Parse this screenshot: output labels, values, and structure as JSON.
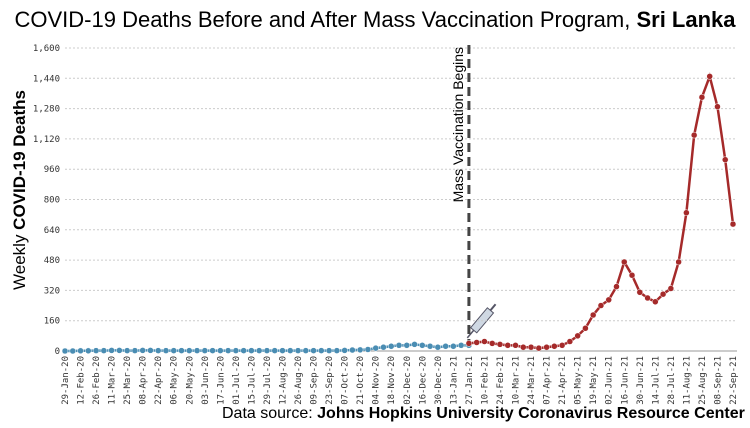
{
  "chart_data": {
    "type": "line",
    "title": {
      "text": "COVID-19 Deaths Before and After Mass Vaccination Program, ",
      "bold": "Sri Lanka"
    },
    "y_label": {
      "text": "Weekly ",
      "bold": "COVID-19 Deaths"
    },
    "source": {
      "text": "Data source: ",
      "bold": "Johns Hopkins University Coronavirus Resource Center"
    },
    "annotation": {
      "text": "Mass Vaccination Begins",
      "x": "27-Jan-21"
    },
    "categories": [
      "29-Jan-20",
      null,
      "12-Feb-20",
      null,
      "26-Feb-20",
      null,
      "11-Mar-20",
      null,
      "25-Mar-20",
      null,
      "08-Apr-20",
      null,
      "22-Apr-20",
      null,
      "06-May-20",
      null,
      "20-May-20",
      null,
      "03-Jun-20",
      null,
      "17-Jun-20",
      null,
      "01-Jul-20",
      null,
      "15-Jul-20",
      null,
      "29-Jul-20",
      null,
      "12-Aug-20",
      null,
      "26-Aug-20",
      null,
      "09-Sep-20",
      null,
      "23-Sep-20",
      null,
      "07-Oct-20",
      null,
      "21-Oct-20",
      null,
      "04-Nov-20",
      null,
      "18-Nov-20",
      null,
      "02-Dec-20",
      null,
      "16-Dec-20",
      null,
      "30-Dec-20",
      null,
      "13-Jan-21",
      null,
      "27-Jan-21",
      null,
      "10-Feb-21",
      null,
      "24-Feb-21",
      null,
      "10-Mar-21",
      null,
      "24-Mar-21",
      null,
      "07-Apr-21",
      null,
      "21-Apr-21",
      null,
      "05-May-21",
      null,
      "19-May-21",
      null,
      "02-Jun-21",
      null,
      "16-Jun-21",
      null,
      "30-Jun-21",
      null,
      "14-Jul-21",
      null,
      "28-Jul-21",
      null,
      "11-Aug-21",
      null,
      "25-Aug-21",
      null,
      "08-Sep-21",
      null,
      "22-Sep-21"
    ],
    "series": [
      {
        "color": "#4a8db3",
        "values": [
          0,
          0,
          1,
          1,
          2,
          2,
          3,
          3,
          2,
          2,
          3,
          3,
          2,
          2,
          2,
          2,
          2,
          2,
          2,
          2,
          2,
          2,
          2,
          2,
          2,
          2,
          2,
          2,
          2,
          2,
          2,
          2,
          2,
          2,
          2,
          2,
          3,
          5,
          6,
          8,
          15,
          20,
          25,
          30,
          30,
          35,
          30,
          25,
          20,
          25,
          25,
          30,
          30,
          null,
          null,
          null,
          null,
          null,
          null,
          null,
          null,
          null,
          null,
          null,
          null,
          null,
          null,
          null,
          null,
          null,
          null,
          null,
          null,
          null,
          null,
          null,
          null,
          null,
          null,
          null,
          null,
          null,
          null,
          null,
          null,
          null,
          null
        ]
      },
      {
        "color": "#a52a2a",
        "values": [
          null,
          null,
          null,
          null,
          null,
          null,
          null,
          null,
          null,
          null,
          null,
          null,
          null,
          null,
          null,
          null,
          null,
          null,
          null,
          null,
          null,
          null,
          null,
          null,
          null,
          null,
          null,
          null,
          null,
          null,
          null,
          null,
          null,
          null,
          null,
          null,
          null,
          null,
          null,
          null,
          null,
          null,
          null,
          null,
          null,
          null,
          null,
          null,
          null,
          null,
          null,
          null,
          40,
          45,
          50,
          40,
          35,
          30,
          30,
          20,
          20,
          15,
          20,
          25,
          30,
          50,
          80,
          120,
          190,
          240,
          270,
          340,
          470,
          400,
          310,
          280,
          260,
          300,
          330,
          470,
          730,
          1140,
          1340,
          1450,
          1290,
          1010,
          670
        ]
      }
    ],
    "ylim": [
      0,
      1600
    ],
    "yticks": [
      0,
      160,
      320,
      480,
      640,
      800,
      960,
      {
        "value": 1120,
        "label": "1,120"
      },
      {
        "value": 1280,
        "label": "1,280"
      },
      {
        "value": 1440,
        "label": "1,440"
      },
      {
        "value": 1600,
        "label": "1,600"
      }
    ],
    "grid": true
  }
}
